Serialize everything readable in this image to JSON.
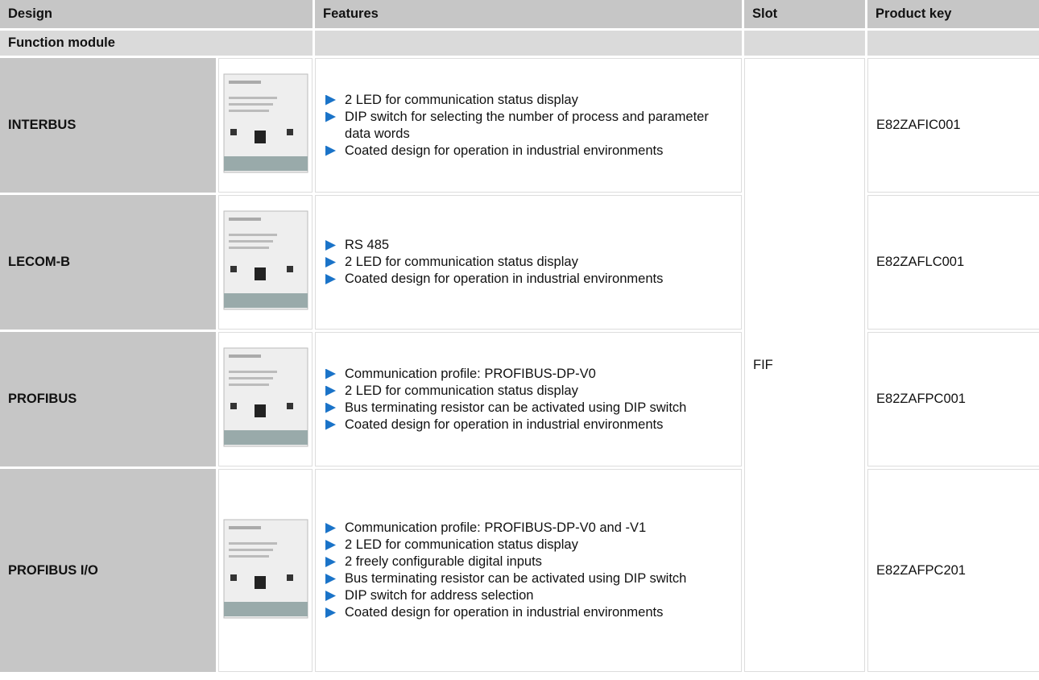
{
  "table": {
    "header": [
      "Design",
      "Features",
      "Slot",
      "Product key"
    ],
    "section": "Function module",
    "slot": "FIF",
    "rows": [
      {
        "design": "INTERBUS",
        "features": [
          "2 LED for communication status display",
          "DIP switch for selecting the number of process and parameter data words",
          "Coated design for operation in industrial environments"
        ],
        "product_key": "E82ZAFIC001"
      },
      {
        "design": "LECOM-B",
        "features": [
          "RS 485",
          "2 LED for communication status display",
          "Coated design for operation in industrial environments"
        ],
        "product_key": "E82ZAFLC001"
      },
      {
        "design": "PROFIBUS",
        "features": [
          "Communication profile: PROFIBUS-DP-V0",
          "2 LED for communication status display",
          "Bus terminating resistor can be activated using DIP switch",
          "Coated design for operation in industrial environments"
        ],
        "product_key": "E82ZAFPC001"
      },
      {
        "design": "PROFIBUS I/O",
        "features": [
          "Communication profile: PROFIBUS-DP-V0 and -V1",
          "2 LED for communication status display",
          "2 freely configurable digital inputs",
          "Bus terminating resistor can be activated using DIP switch",
          "DIP switch for address selection",
          "Coated design for operation in industrial environments"
        ],
        "product_key": "E82ZAFPC201"
      }
    ]
  }
}
